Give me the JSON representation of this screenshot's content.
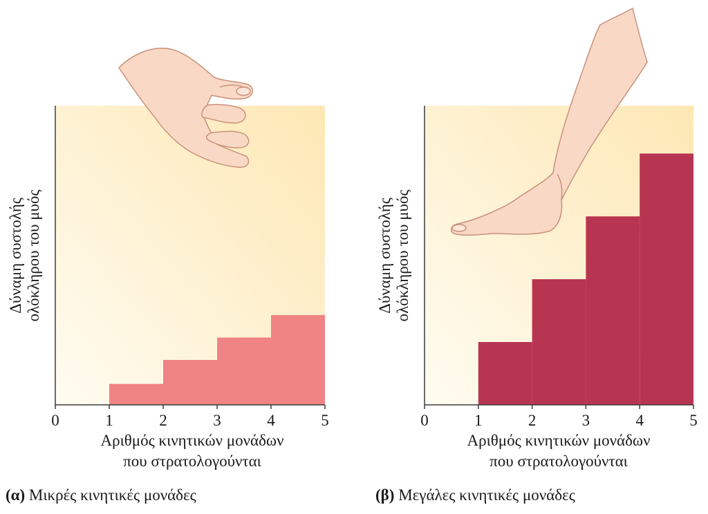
{
  "chart_data": [
    {
      "type": "bar",
      "panel_letter": "(α)",
      "title": "Μικρές κινητικές μονάδες",
      "xlabel_line1": "Αριθμός κινητικών μονάδων",
      "xlabel_line2": "που στρατολογούνται",
      "ylabel_line1": "Δύναμη συστολής",
      "ylabel_line2": "ολόκληρου του μυός",
      "x_ticks": [
        "0",
        "1",
        "2",
        "3",
        "4",
        "5"
      ],
      "xlim": [
        0,
        5
      ],
      "ylim": [
        0,
        1
      ],
      "categories": [
        "1",
        "2",
        "3",
        "4"
      ],
      "values": [
        0.07,
        0.15,
        0.225,
        0.3
      ],
      "bar_color": "#f08383",
      "illustration": "hand-icon"
    },
    {
      "type": "bar",
      "panel_letter": "(β)",
      "title": "Μεγάλες κινητικές μονάδες",
      "xlabel_line1": "Αριθμός κινητικών μονάδων",
      "xlabel_line2": "που στρατολογούνται",
      "ylabel_line1": "Δύναμη συστολής",
      "ylabel_line2": "ολόκληρου του μυός",
      "x_ticks": [
        "0",
        "1",
        "2",
        "3",
        "4",
        "5"
      ],
      "xlim": [
        0,
        5
      ],
      "ylim": [
        0,
        1
      ],
      "categories": [
        "1",
        "2",
        "3",
        "4"
      ],
      "values": [
        0.21,
        0.42,
        0.63,
        0.84
      ],
      "bar_color": "#b83552",
      "illustration": "foot-icon"
    }
  ],
  "colors": {
    "panel_light": "#fffcf1",
    "panel_dark": "#fde7b4",
    "axis": "#3a3a3a",
    "skin": "#f9d9c6",
    "skin_stroke": "#c9907a"
  }
}
